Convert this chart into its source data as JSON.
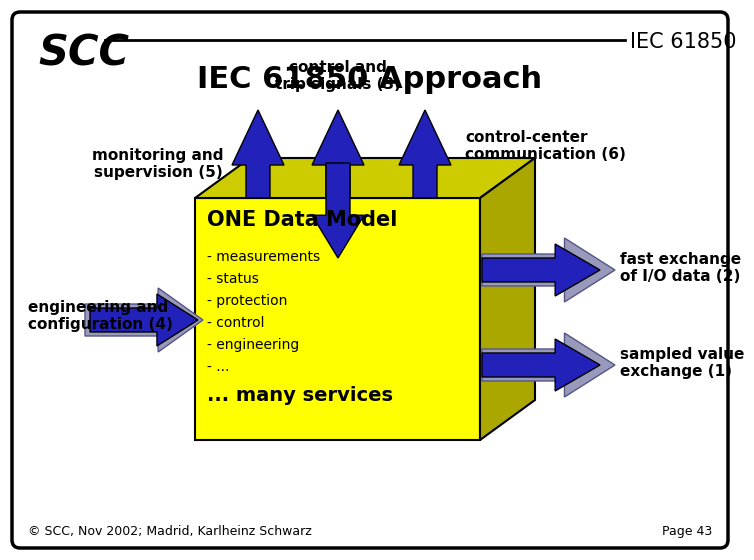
{
  "bg_color": "#ffffff",
  "border_color": "#000000",
  "title_scc": "SCC",
  "title_iec": "IEC 61850",
  "title_main": "IEC 61850 Approach",
  "footer_left": "© SCC, Nov 2002; Madrid, Karlheinz Schwarz",
  "footer_right": "Page 43",
  "box_face_color": "#ffff00",
  "box_top_color": "#cccc00",
  "box_right_color": "#aaa800",
  "arrow_blue": "#2222bb",
  "label_control": "control and\ntrip signals (3)",
  "label_monitoring": "monitoring and\nsupervision (5)",
  "label_control_center": "control-center\ncommunication (6)",
  "label_engineering": "engineering and\nconfiguration (4)",
  "label_fast": "fast exchange\nof I/O data (2)",
  "label_sampled": "sampled value\nexchange (1)",
  "box_title": "ONE Data Model",
  "box_items": [
    "- measurements",
    "- status",
    "- protection",
    "- control",
    "- engineering",
    "- ..."
  ],
  "box_last": "... many services"
}
